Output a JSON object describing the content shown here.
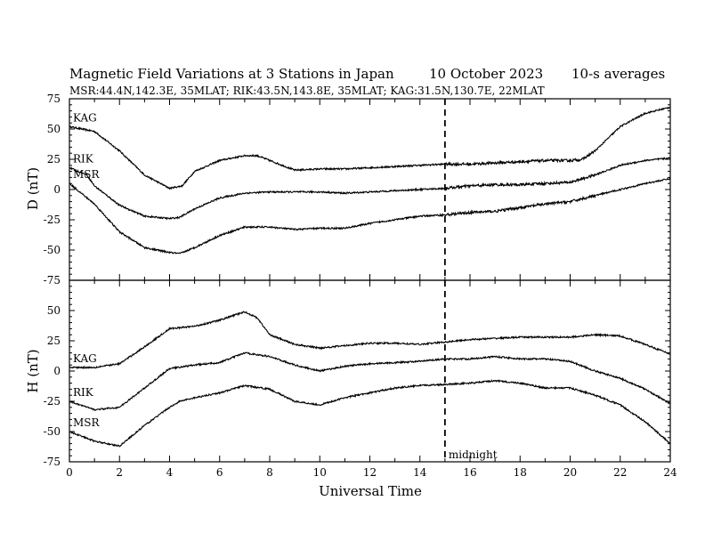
{
  "title": {
    "main": "Magnetic Field Variations at 3 Stations in Japan",
    "date": "10 October 2023",
    "avg": "10-s averages",
    "stations": "MSR:44.4N,142.3E, 35MLAT;  RIK:43.5N,143.8E, 35MLAT;  KAG:31.5N,130.7E, 22MLAT"
  },
  "annotation": {
    "label": "midnight",
    "x": 15
  },
  "colors": {
    "line": "#000000",
    "background": "#ffffff"
  },
  "chart_data": [
    {
      "type": "line",
      "xlabel": "Universal Time",
      "ylabel": "D (nT)",
      "xlim": [
        0,
        24
      ],
      "ylim": [
        -75,
        75
      ],
      "yticks": [
        75,
        50,
        25,
        0,
        -25,
        -50,
        -75
      ],
      "grid": false,
      "series": [
        {
          "name": "KAG",
          "x": [
            0,
            1,
            2,
            3,
            4,
            4.5,
            5,
            6,
            7,
            7.5,
            8,
            9,
            10,
            11,
            12,
            13,
            14,
            15,
            16,
            17,
            18,
            19,
            20,
            20.5,
            21,
            21.5,
            22,
            23,
            24
          ],
          "values": [
            52,
            48,
            32,
            12,
            1,
            3,
            15,
            24,
            28,
            28,
            24,
            16,
            17,
            17,
            18,
            19,
            20,
            21,
            21,
            22,
            23,
            24,
            24,
            25,
            32,
            42,
            52,
            63,
            68
          ]
        },
        {
          "name": "RIK",
          "x": [
            0,
            0.7,
            1,
            2,
            3,
            4,
            4.4,
            5,
            6,
            7,
            8,
            9,
            10,
            11,
            12,
            13,
            14,
            15,
            16,
            17,
            18,
            19,
            20,
            21,
            22,
            23,
            24
          ],
          "values": [
            18,
            12,
            3,
            -13,
            -22,
            -24,
            -23,
            -16,
            -7,
            -3,
            -2,
            -2,
            -2,
            -3,
            -2,
            -1,
            0,
            1,
            3,
            4,
            4,
            5,
            6,
            12,
            20,
            24,
            26
          ]
        },
        {
          "name": "MSR",
          "x": [
            0,
            1,
            2,
            3,
            4,
            4.4,
            5,
            6,
            7,
            8,
            9,
            10,
            11,
            12,
            13,
            14,
            15,
            16,
            17,
            18,
            19,
            20,
            21,
            22,
            23,
            24
          ],
          "values": [
            5,
            -12,
            -35,
            -48,
            -52,
            -53,
            -48,
            -38,
            -31,
            -31,
            -33,
            -32,
            -32,
            -28,
            -25,
            -22,
            -21,
            -19,
            -18,
            -15,
            -12,
            -10,
            -5,
            0,
            5,
            9
          ]
        }
      ]
    },
    {
      "type": "line",
      "xlabel": "Universal Time",
      "ylabel": "H (nT)",
      "xlim": [
        0,
        24
      ],
      "ylim": [
        -75,
        75
      ],
      "xticks": [
        0,
        2,
        4,
        6,
        8,
        10,
        12,
        14,
        16,
        18,
        20,
        22,
        24
      ],
      "yticks": [
        50,
        25,
        0,
        -25,
        -50,
        -75
      ],
      "grid": false,
      "series": [
        {
          "name": "KAG",
          "x": [
            0,
            1,
            2,
            3,
            4,
            5,
            6,
            7,
            7.5,
            8,
            9,
            10,
            11,
            12,
            13,
            14,
            15,
            16,
            17,
            18,
            19,
            20,
            21,
            22,
            23,
            24
          ],
          "values": [
            3,
            3,
            6,
            20,
            35,
            37,
            42,
            49,
            44,
            30,
            22,
            19,
            21,
            23,
            23,
            22,
            24,
            26,
            27,
            28,
            28,
            28,
            30,
            29,
            22,
            14
          ]
        },
        {
          "name": "RIK",
          "x": [
            0,
            1,
            2,
            3,
            4,
            5,
            6,
            7,
            8,
            9,
            10,
            11,
            12,
            13,
            14,
            15,
            16,
            17,
            18,
            19,
            20,
            21,
            22,
            23,
            24
          ],
          "values": [
            -25,
            -32,
            -30,
            -14,
            2,
            5,
            7,
            15,
            12,
            5,
            0,
            4,
            6,
            7,
            8,
            10,
            10,
            12,
            10,
            10,
            8,
            0,
            -6,
            -15,
            -27
          ]
        },
        {
          "name": "MSR",
          "x": [
            0,
            1,
            2,
            3,
            4,
            4.4,
            5,
            6,
            7,
            8,
            9,
            10,
            11,
            12,
            13,
            14,
            15,
            16,
            17,
            18,
            19,
            20,
            21,
            22,
            23,
            24
          ],
          "values": [
            -50,
            -58,
            -62,
            -45,
            -30,
            -25,
            -22,
            -18,
            -12,
            -15,
            -25,
            -28,
            -22,
            -18,
            -14,
            -12,
            -11,
            -10,
            -8,
            -10,
            -14,
            -14,
            -20,
            -28,
            -42,
            -60
          ]
        }
      ]
    }
  ]
}
